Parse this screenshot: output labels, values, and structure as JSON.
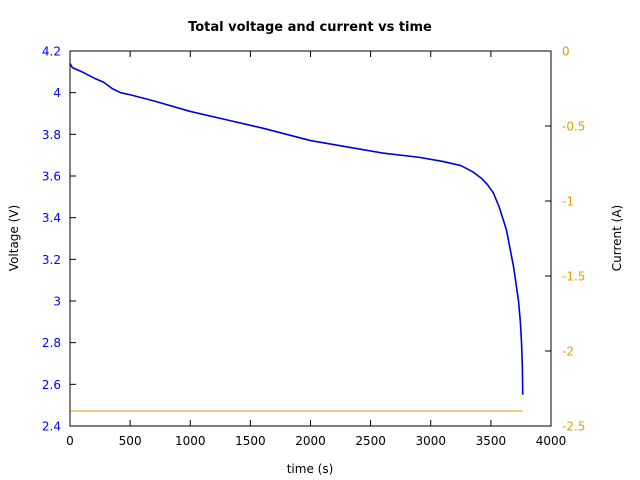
{
  "chart_data": {
    "type": "line",
    "title": "Total voltage and current vs time",
    "xlabel": "time (s)",
    "ylabel": "Voltage (V)",
    "y2label": "Current (A)",
    "xlim": [
      0,
      4000
    ],
    "ylim": [
      2.4,
      4.2
    ],
    "y2lim": [
      -2.5,
      0
    ],
    "x_ticks": [
      0,
      500,
      1000,
      1500,
      2000,
      2500,
      3000,
      3500,
      4000
    ],
    "x_tick_labels": [
      "0",
      "500",
      "1000",
      "1500",
      "2000",
      "2500",
      "3000",
      "3500",
      "4000"
    ],
    "y_ticks": [
      2.4,
      2.6,
      2.8,
      3.0,
      3.2,
      3.4,
      3.6,
      3.8,
      4.0,
      4.2
    ],
    "y_tick_labels": [
      "2.4",
      "2.6",
      "2.8",
      "3",
      "3.2",
      "3.4",
      "3.6",
      "3.8",
      "4",
      "4.2"
    ],
    "y2_ticks": [
      -2.5,
      -2,
      -1.5,
      -1,
      -0.5,
      0
    ],
    "y2_tick_labels": [
      "-2.5",
      "-2",
      "-1.5",
      "-1",
      "-0.5",
      "0"
    ],
    "grid": false,
    "series": [
      {
        "axis": "left",
        "color": "#0000dd",
        "x": [
          0,
          20,
          100,
          200,
          280,
          350,
          420,
          500,
          700,
          1000,
          1300,
          1600,
          1800,
          2000,
          2300,
          2600,
          2900,
          3100,
          3250,
          3350,
          3420,
          3470,
          3520,
          3570,
          3630,
          3660,
          3690,
          3710,
          3730,
          3745,
          3755,
          3762,
          3765
        ],
        "y": [
          4.14,
          4.12,
          4.1,
          4.07,
          4.05,
          4.02,
          4.0,
          3.99,
          3.96,
          3.91,
          3.87,
          3.83,
          3.8,
          3.77,
          3.74,
          3.71,
          3.69,
          3.67,
          3.65,
          3.62,
          3.59,
          3.56,
          3.52,
          3.45,
          3.34,
          3.25,
          3.16,
          3.08,
          3.0,
          2.9,
          2.8,
          2.68,
          2.55
        ]
      },
      {
        "axis": "right",
        "color": "#e0a000",
        "x": [
          0,
          3765
        ],
        "y": [
          -2.4,
          -2.4
        ]
      }
    ]
  },
  "colors": {
    "left_axis": "#0000ff",
    "right_axis": "#e0a000",
    "frame": "#000000"
  }
}
